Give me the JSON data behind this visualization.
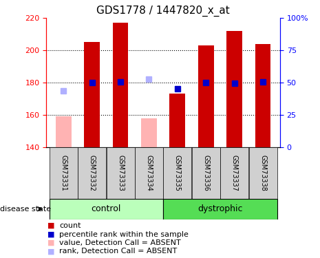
{
  "title": "GDS1778 / 1447820_x_at",
  "samples": [
    "GSM73331",
    "GSM73332",
    "GSM73333",
    "GSM73334",
    "GSM73335",
    "GSM73336",
    "GSM73337",
    "GSM73338"
  ],
  "count_values": [
    159.0,
    205.0,
    217.0,
    158.0,
    173.0,
    203.0,
    212.0,
    204.0
  ],
  "rank_values": [
    175.0,
    180.0,
    180.5,
    182.0,
    176.0,
    180.0,
    179.5,
    180.5
  ],
  "absent_mask": [
    true,
    false,
    false,
    true,
    false,
    false,
    false,
    false
  ],
  "ylim_left": [
    140,
    220
  ],
  "ylim_right": [
    0,
    100
  ],
  "yticks_left": [
    140,
    160,
    180,
    200,
    220
  ],
  "yticks_right": [
    0,
    25,
    50,
    75,
    100
  ],
  "bar_color_present": "#cc0000",
  "bar_color_absent": "#ffb3b3",
  "rank_color_present": "#0000cc",
  "rank_color_absent": "#b0b0ff",
  "control_color_light": "#bbffbb",
  "control_color_dark": "#55dd55",
  "sample_box_color": "#d0d0d0",
  "bar_width": 0.55,
  "rank_marker_size": 6,
  "background_color": "#ffffff",
  "title_fontsize": 11,
  "tick_label_fontsize": 8,
  "sample_fontsize": 7,
  "legend_fontsize": 8,
  "group_fontsize": 9
}
